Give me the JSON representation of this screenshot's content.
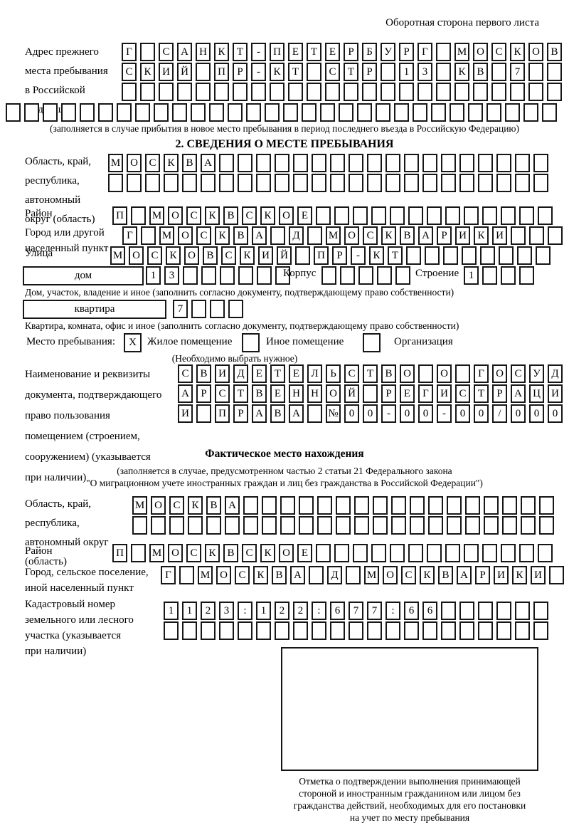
{
  "header": {
    "corner_note": "Оборотная сторона первого листа"
  },
  "prev_address": {
    "label_lines": [
      "Адрес прежнего",
      "места пребывания",
      "в Российской",
      "Федерации"
    ],
    "rows": [
      {
        "cells": "Г САНКТ-ПЕТЕРБУРГ МОСКОВ",
        "len": 24
      },
      {
        "cells": "СКИЙ ПР-КТ СТР 13 КВ 7",
        "len": 24
      },
      {
        "cells": "",
        "len": 24
      },
      {
        "cells": "",
        "len": 30
      }
    ],
    "note": "(заполняется в случае прибытия в новое место пребывания в период последнего въезда в Российскую Федерацию)"
  },
  "section2": {
    "title": "2. СВЕДЕНИЯ О МЕСТЕ ПРЕБЫВАНИЯ",
    "region": {
      "label_lines": [
        "Область, край,",
        "республика,",
        "автономный",
        "округ (область)"
      ],
      "rows": [
        {
          "cells": "МОСКВА",
          "len": 24
        },
        {
          "cells": "",
          "len": 24
        }
      ]
    },
    "district": {
      "label": "Район",
      "row": {
        "cells": "П МОСКВСКОЕ",
        "len": 24
      }
    },
    "city": {
      "label_lines": [
        "Город или другой",
        "населенный пункт"
      ],
      "row": {
        "cells": "Г МОСКВА Д МОСКВАРИКИ",
        "len": 24
      }
    },
    "street": {
      "label": "Улица",
      "row": {
        "cells": "МОСКОВСКИЙ ПР-КТ",
        "len": 24
      }
    },
    "house": {
      "field_label": "дом",
      "row": {
        "cells": "13",
        "len": 8
      },
      "korpus_label": "Корпус",
      "korpus_row": {
        "cells": "",
        "len": 5
      },
      "stroenie_label": "Строение",
      "stroenie_row": {
        "cells": "1",
        "len": 4
      },
      "note": "Дом, участок, владение и иное (заполнить согласно документу, подтверждающему право собственности)"
    },
    "apartment": {
      "field_label": "квартира",
      "row": {
        "cells": "7",
        "len": 4
      },
      "note": "Квартира, комната, офис и иное (заполнить согласно документу, подтверждающему право собственности)"
    },
    "stay_type": {
      "label": "Место пребывания:",
      "checked_mark": "X",
      "options": [
        "Жилое помещение",
        "Иное помещение",
        "Организация"
      ],
      "note": "(Необходимо выбрать нужное)"
    },
    "document": {
      "label_lines": [
        "Наименование и реквизиты",
        "документа, подтверждающего",
        "право пользования",
        "помещением (строением,",
        "сооружением) (указывается",
        "при наличии)"
      ],
      "rows": [
        {
          "cells": "СВИДЕТЕЛЬСТВО О ГОСУД",
          "len": 21
        },
        {
          "cells": "АРСТВЕННОЙ РЕГИСТРАЦИ",
          "len": 21
        },
        {
          "cells": "И ПРАВА №00-00-00/000",
          "len": 21
        }
      ]
    }
  },
  "actual_location": {
    "title": "Фактическое место нахождения",
    "note_lines": [
      "(заполняется в случае, предусмотренном частью 2 статьи 21 Федерального закона",
      "\"О миграционном учете иностранных граждан и лиц без гражданства в Российской Федерации\")"
    ],
    "region": {
      "label_lines": [
        "Область, край,",
        "республика,",
        "автономный округ",
        "(область)"
      ],
      "rows": [
        {
          "cells": "МОСКВА",
          "len": 23
        },
        {
          "cells": "",
          "len": 23
        }
      ]
    },
    "district": {
      "label": "Район",
      "row": {
        "cells": "П МОСКВСКОЕ",
        "len": 24
      }
    },
    "city": {
      "label_lines": [
        "Город, сельское поселение,",
        "иной населенный пункт"
      ],
      "row": {
        "cells": "Г МОСКВА Д МОСКВАРИКИ",
        "len": 22
      }
    },
    "cadastral": {
      "label_lines": [
        "Кадастровый номер",
        "земельного или лесного",
        "участка (указывается",
        "при наличии)"
      ],
      "rows": [
        {
          "cells": "1123:122:677:66",
          "len": 21
        },
        {
          "cells": "",
          "len": 21
        }
      ]
    },
    "stamp_caption_lines": [
      "Отметка о подтверждении выполнения принимающей",
      "стороной и иностранным гражданином или лицом без",
      "гражданства действий, необходимых для его постановки",
      "на учет по месту пребывания"
    ]
  }
}
